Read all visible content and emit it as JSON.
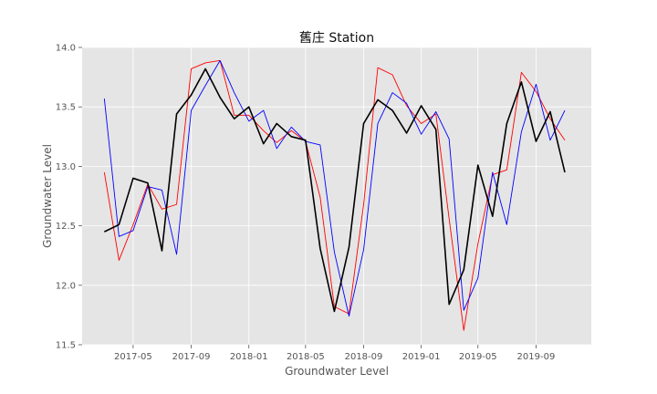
{
  "chart_data": {
    "type": "line",
    "title": "舊庄 Station",
    "xlabel": "Groundwater Level",
    "ylabel": "Groundwater Level",
    "ylim": [
      11.5,
      14.0
    ],
    "yticks": [
      "11.5",
      "12.0",
      "12.5",
      "13.0",
      "13.5",
      "14.0"
    ],
    "xlim": [
      "2017-01-13",
      "2019-12-27"
    ],
    "xticks": [
      {
        "date": "2017-05-01",
        "label": "2017-05"
      },
      {
        "date": "2017-09-01",
        "label": "2017-09"
      },
      {
        "date": "2018-01-01",
        "label": "2018-01"
      },
      {
        "date": "2018-05-01",
        "label": "2018-05"
      },
      {
        "date": "2018-09-01",
        "label": "2018-09"
      },
      {
        "date": "2019-01-01",
        "label": "2019-01"
      },
      {
        "date": "2019-05-01",
        "label": "2019-05"
      },
      {
        "date": "2019-09-01",
        "label": "2019-09"
      }
    ],
    "grid": true,
    "background": "#e5e5e5",
    "x": [
      "2017-03-01",
      "2017-04-01",
      "2017-05-01",
      "2017-06-01",
      "2017-07-01",
      "2017-08-01",
      "2017-09-01",
      "2017-10-01",
      "2017-11-01",
      "2017-12-01",
      "2018-01-01",
      "2018-02-01",
      "2018-03-01",
      "2018-04-01",
      "2018-05-01",
      "2018-06-01",
      "2018-07-01",
      "2018-08-01",
      "2018-09-01",
      "2018-10-01",
      "2018-11-01",
      "2018-12-01",
      "2019-01-01",
      "2019-02-01",
      "2019-03-01",
      "2019-04-01",
      "2019-05-01",
      "2019-06-01",
      "2019-07-01",
      "2019-08-01",
      "2019-09-01",
      "2019-10-01",
      "2019-11-01"
    ],
    "series": [
      {
        "color": "#ff0000",
        "width": 0.9,
        "values": [
          12.95,
          12.21,
          12.51,
          12.85,
          12.64,
          12.68,
          13.82,
          13.87,
          13.89,
          13.43,
          13.43,
          13.3,
          13.2,
          13.3,
          13.21,
          12.74,
          11.82,
          11.76,
          12.68,
          13.83,
          13.77,
          13.51,
          13.36,
          13.44,
          12.56,
          11.62,
          12.35,
          12.93,
          12.97,
          13.79,
          13.63,
          13.4,
          13.22
        ]
      },
      {
        "color": "#0000ff",
        "width": 0.9,
        "values": [
          13.57,
          12.41,
          12.46,
          12.83,
          12.8,
          12.26,
          13.47,
          13.68,
          13.89,
          13.62,
          13.38,
          13.47,
          13.15,
          13.33,
          13.21,
          13.18,
          12.28,
          11.74,
          12.3,
          13.36,
          13.62,
          13.53,
          13.27,
          13.46,
          13.23,
          11.79,
          12.06,
          12.95,
          12.51,
          13.29,
          13.69,
          13.22,
          13.47
        ]
      },
      {
        "color": "#000000",
        "width": 1.6,
        "values": [
          12.45,
          12.51,
          12.9,
          12.86,
          12.29,
          13.44,
          13.6,
          13.82,
          13.58,
          13.4,
          13.5,
          13.19,
          13.36,
          13.25,
          13.22,
          12.31,
          11.78,
          12.32,
          13.36,
          13.56,
          13.47,
          13.28,
          13.51,
          13.31,
          11.84,
          12.13,
          13.01,
          12.58,
          13.36,
          13.71,
          13.21,
          13.46,
          12.95
        ]
      }
    ]
  }
}
